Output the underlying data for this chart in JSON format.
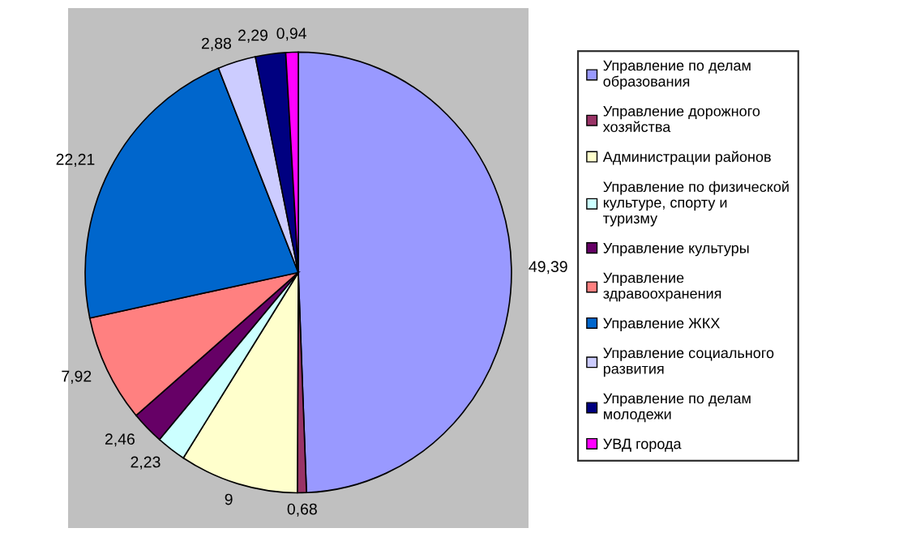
{
  "chart_data": {
    "type": "pie",
    "categories": [
      "Управление по делам образования",
      "Управление дорожного хозяйства",
      "Администрации районов",
      "Управление по физической культуре, спорту и туризму",
      "Управление культуры",
      "Управление здравоохранения",
      "Управление ЖКХ",
      "Управление социального развития",
      "Управление по делам молодежи",
      "УВД города"
    ],
    "values": [
      49.39,
      0.68,
      9,
      2.23,
      2.46,
      7.92,
      22.21,
      2.88,
      2.29,
      0.94
    ],
    "value_labels": [
      "49,39",
      "0,68",
      "9",
      "2,23",
      "2,46",
      "7,92",
      "22,21",
      "2,88",
      "2,29",
      "0,94"
    ],
    "colors": [
      "#9999ff",
      "#993366",
      "#ffffcc",
      "#ccffff",
      "#660066",
      "#ff8080",
      "#0066cc",
      "#ccccff",
      "#000080",
      "#ff00ff"
    ],
    "legend": "right"
  }
}
